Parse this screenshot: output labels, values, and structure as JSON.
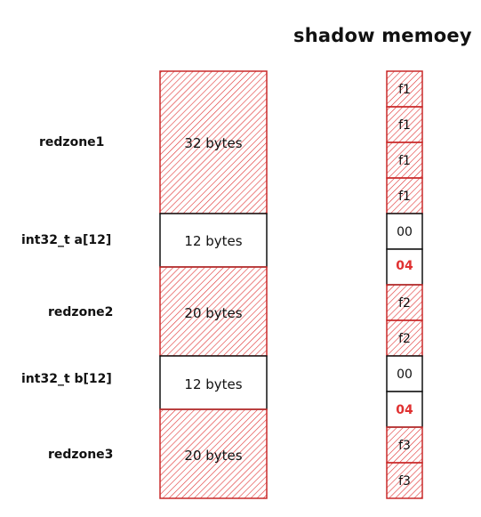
{
  "title": "shadow memoey",
  "memory_blocks": [
    {
      "label": "redzone1",
      "size_text": "32 bytes",
      "kind": "redzone"
    },
    {
      "label": "int32_t   a[12]",
      "size_text": "12 bytes",
      "kind": "data"
    },
    {
      "label": "redzone2",
      "size_text": "20 bytes",
      "kind": "redzone"
    },
    {
      "label": "int32_t   b[12]",
      "size_text": "12 bytes",
      "kind": "data"
    },
    {
      "label": "redzone3",
      "size_text": "20 bytes",
      "kind": "redzone"
    }
  ],
  "shadow_cells": [
    {
      "value": "f1",
      "kind": "poison"
    },
    {
      "value": "f1",
      "kind": "poison"
    },
    {
      "value": "f1",
      "kind": "poison"
    },
    {
      "value": "f1",
      "kind": "poison"
    },
    {
      "value": "00",
      "kind": "addressable"
    },
    {
      "value": "04",
      "kind": "partial"
    },
    {
      "value": "f2",
      "kind": "poison"
    },
    {
      "value": "f2",
      "kind": "poison"
    },
    {
      "value": "00",
      "kind": "addressable"
    },
    {
      "value": "04",
      "kind": "partial"
    },
    {
      "value": "f3",
      "kind": "poison"
    },
    {
      "value": "f3",
      "kind": "poison"
    }
  ],
  "colors": {
    "redzone_stroke": "#c92a2a",
    "hatch": "#e03131",
    "data_stroke": "#111111",
    "partial_text": "#e03131"
  }
}
